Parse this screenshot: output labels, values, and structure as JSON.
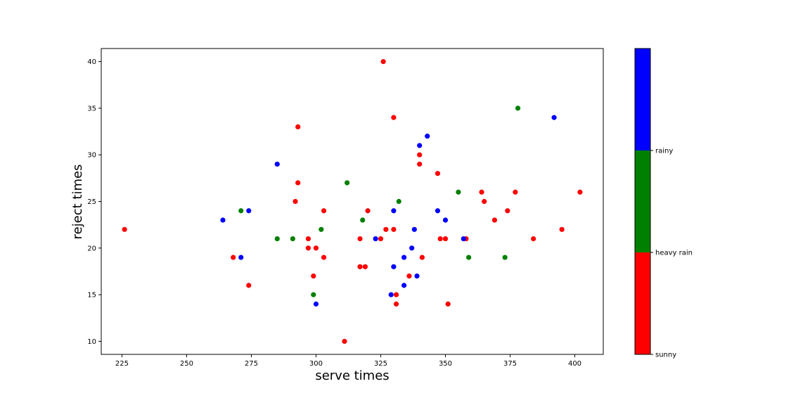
{
  "chart_data": {
    "type": "scatter",
    "title": "",
    "xlabel": "serve times",
    "ylabel": "reject times",
    "xlim": [
      217,
      411
    ],
    "ylim": [
      8.6,
      41.4
    ],
    "xticks": [
      225,
      250,
      275,
      300,
      325,
      350,
      375,
      400
    ],
    "yticks": [
      10,
      15,
      20,
      25,
      30,
      35,
      40
    ],
    "grid": false,
    "colorbar": {
      "categories": [
        "sunny",
        "heavy rain",
        "rainy"
      ],
      "colors": [
        "#ff0000",
        "#008000",
        "#0000ff"
      ],
      "tick_labels": [
        "sunny",
        "heavy rain",
        "rainy"
      ]
    },
    "series": [
      {
        "category": "sunny",
        "color": "#ff0000",
        "points": [
          [
            226,
            22
          ],
          [
            268,
            19
          ],
          [
            274,
            16
          ],
          [
            292,
            25
          ],
          [
            293,
            27
          ],
          [
            293,
            33
          ],
          [
            297,
            20
          ],
          [
            297,
            21
          ],
          [
            299,
            17
          ],
          [
            300,
            20
          ],
          [
            303,
            19
          ],
          [
            303,
            24
          ],
          [
            311,
            10
          ],
          [
            317,
            18
          ],
          [
            317,
            21
          ],
          [
            319,
            18
          ],
          [
            320,
            24
          ],
          [
            325,
            21
          ],
          [
            326,
            40
          ],
          [
            327,
            22
          ],
          [
            330,
            22
          ],
          [
            330,
            34
          ],
          [
            331,
            14
          ],
          [
            331,
            15
          ],
          [
            336,
            17
          ],
          [
            340,
            29
          ],
          [
            340,
            30
          ],
          [
            341,
            19
          ],
          [
            347,
            28
          ],
          [
            348,
            21
          ],
          [
            350,
            21
          ],
          [
            351,
            14
          ],
          [
            358,
            21
          ],
          [
            364,
            26
          ],
          [
            365,
            25
          ],
          [
            369,
            23
          ],
          [
            374,
            24
          ],
          [
            377,
            26
          ],
          [
            384,
            21
          ],
          [
            395,
            22
          ],
          [
            402,
            26
          ]
        ]
      },
      {
        "category": "heavy rain",
        "color": "#008000",
        "points": [
          [
            271,
            24
          ],
          [
            285,
            21
          ],
          [
            291,
            21
          ],
          [
            299,
            15
          ],
          [
            302,
            22
          ],
          [
            312,
            27
          ],
          [
            318,
            23
          ],
          [
            332,
            25
          ],
          [
            355,
            26
          ],
          [
            359,
            19
          ],
          [
            373,
            19
          ],
          [
            378,
            35
          ]
        ]
      },
      {
        "category": "rainy",
        "color": "#0000ff",
        "points": [
          [
            264,
            23
          ],
          [
            271,
            19
          ],
          [
            274,
            24
          ],
          [
            285,
            29
          ],
          [
            300,
            14
          ],
          [
            323,
            21
          ],
          [
            329,
            15
          ],
          [
            330,
            18
          ],
          [
            330,
            24
          ],
          [
            334,
            16
          ],
          [
            334,
            19
          ],
          [
            337,
            20
          ],
          [
            338,
            22
          ],
          [
            339,
            17
          ],
          [
            340,
            31
          ],
          [
            343,
            32
          ],
          [
            347,
            24
          ],
          [
            350,
            23
          ],
          [
            357,
            21
          ],
          [
            392,
            34
          ]
        ]
      }
    ]
  }
}
